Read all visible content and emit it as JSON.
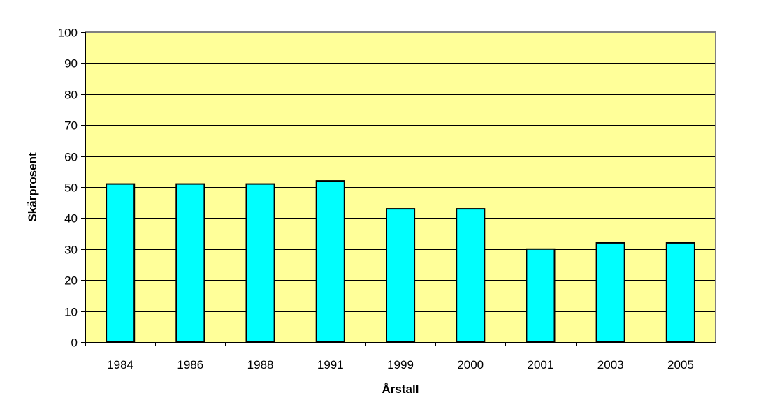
{
  "chart_data": {
    "type": "bar",
    "categories": [
      "1984",
      "1986",
      "1988",
      "1991",
      "1999",
      "2000",
      "2001",
      "2003",
      "2005"
    ],
    "values": [
      51,
      51,
      51,
      52,
      43,
      43,
      30,
      32,
      32
    ],
    "xlabel": "Årstall",
    "ylabel": "Skårprosent",
    "ylim": [
      0,
      100
    ],
    "yticks": [
      "0",
      "10",
      "20",
      "30",
      "40",
      "50",
      "60",
      "70",
      "80",
      "90",
      "100"
    ],
    "grid": true,
    "legend": "none",
    "colors": {
      "plot_background": "#FFFF99",
      "bar_fill": "#00FFFF",
      "bar_stroke": "#000000",
      "gridline": "#000000",
      "plot_border": "#808080"
    }
  }
}
